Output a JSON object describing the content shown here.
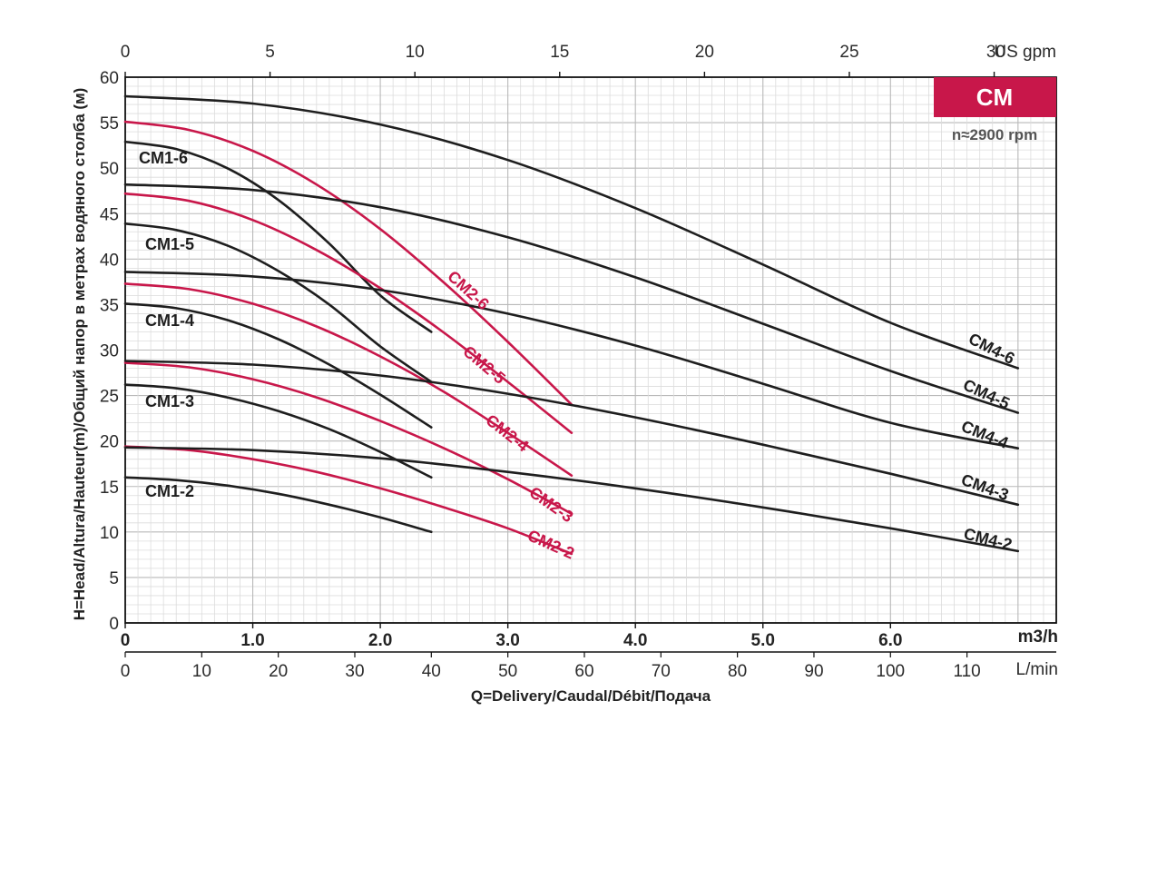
{
  "chart_data": {
    "type": "line",
    "badge": "CM",
    "speed_note": "n≈2900 rpm",
    "ylabel": "H=Head/Altura/Hauteur(m)/Общий напор в метрах водяного столба (м)",
    "xlabel": "Q=Delivery/Caudal/Débit/Подача",
    "ylim": [
      0,
      60
    ],
    "xlim_m3h": [
      0,
      7.3
    ],
    "y_ticks": [
      "0",
      "5",
      "10",
      "15",
      "20",
      "25",
      "30",
      "35",
      "40",
      "45",
      "50",
      "55",
      "60"
    ],
    "x_axes": {
      "m3h": {
        "unit": "m3/h",
        "ticks": [
          {
            "v": 0,
            "label": "0"
          },
          {
            "v": 1,
            "label": "1.0"
          },
          {
            "v": 2,
            "label": "2.0"
          },
          {
            "v": 3,
            "label": "3.0"
          },
          {
            "v": 4,
            "label": "4.0"
          },
          {
            "v": 5,
            "label": "5.0"
          },
          {
            "v": 6,
            "label": "6.0"
          }
        ]
      },
      "lmin": {
        "unit": "L/min",
        "ticks": [
          "0",
          "10",
          "20",
          "30",
          "40",
          "50",
          "60",
          "70",
          "80",
          "90",
          "100",
          "110"
        ]
      },
      "usgpm": {
        "unit": "US gpm",
        "ticks": [
          "0",
          "5",
          "10",
          "15",
          "20",
          "25",
          "30"
        ]
      }
    },
    "grid": true,
    "series": [
      {
        "name": "CM1-2",
        "family": "CM1",
        "color": "#1e1e1e",
        "x": [
          0,
          0.4,
          0.8,
          1.2,
          1.6,
          2.0,
          2.4
        ],
        "y": [
          16.0,
          15.7,
          15.1,
          14.2,
          13.0,
          11.6,
          10.0
        ]
      },
      {
        "name": "CM1-3",
        "family": "CM1",
        "color": "#1e1e1e",
        "x": [
          0,
          0.4,
          0.8,
          1.2,
          1.6,
          2.0,
          2.4
        ],
        "y": [
          26.2,
          25.8,
          24.8,
          23.3,
          21.3,
          18.8,
          16.0
        ]
      },
      {
        "name": "CM1-4",
        "family": "CM1",
        "color": "#1e1e1e",
        "x": [
          0,
          0.4,
          0.8,
          1.2,
          1.6,
          2.0,
          2.4
        ],
        "y": [
          35.1,
          34.6,
          33.3,
          31.2,
          28.4,
          25.1,
          21.5
        ]
      },
      {
        "name": "CM1-5",
        "family": "CM1",
        "color": "#1e1e1e",
        "x": [
          0,
          0.4,
          0.8,
          1.2,
          1.6,
          2.0,
          2.4
        ],
        "y": [
          43.9,
          43.2,
          41.5,
          38.7,
          35.0,
          30.4,
          26.5
        ]
      },
      {
        "name": "CM1-6",
        "family": "CM1",
        "color": "#1e1e1e",
        "x": [
          0,
          0.4,
          0.8,
          1.2,
          1.6,
          2.0,
          2.4
        ],
        "y": [
          52.9,
          52.1,
          50.0,
          46.5,
          41.7,
          36.0,
          32.0
        ]
      },
      {
        "name": "CM2-2",
        "family": "CM2",
        "color": "#c8174a",
        "x": [
          0,
          0.5,
          1.0,
          1.5,
          2.0,
          2.5,
          3.0,
          3.5
        ],
        "y": [
          19.4,
          19.0,
          18.0,
          16.6,
          14.8,
          12.7,
          10.4,
          7.6
        ]
      },
      {
        "name": "CM2-3",
        "family": "CM2",
        "color": "#c8174a",
        "x": [
          0,
          0.5,
          1.0,
          1.5,
          2.0,
          2.5,
          3.0,
          3.5
        ],
        "y": [
          28.6,
          28.1,
          26.8,
          24.8,
          22.2,
          19.2,
          15.8,
          12.0
        ]
      },
      {
        "name": "CM2-4",
        "family": "CM2",
        "color": "#c8174a",
        "x": [
          0,
          0.5,
          1.0,
          1.5,
          2.0,
          2.5,
          3.0,
          3.5
        ],
        "y": [
          37.3,
          36.7,
          35.1,
          32.6,
          29.3,
          25.4,
          20.9,
          16.2
        ]
      },
      {
        "name": "CM2-5",
        "family": "CM2",
        "color": "#c8174a",
        "x": [
          0,
          0.5,
          1.0,
          1.5,
          2.0,
          2.5,
          3.0,
          3.5
        ],
        "y": [
          47.2,
          46.4,
          44.3,
          41.0,
          36.8,
          31.9,
          26.5,
          20.9
        ]
      },
      {
        "name": "CM2-6",
        "family": "CM2",
        "color": "#c8174a",
        "x": [
          0,
          0.5,
          1.0,
          1.5,
          2.0,
          2.5,
          3.0,
          3.5
        ],
        "y": [
          55.1,
          54.2,
          51.9,
          48.2,
          43.3,
          37.4,
          30.9,
          24.0
        ]
      },
      {
        "name": "CM4-2",
        "family": "CM4",
        "color": "#1e1e1e",
        "x": [
          0,
          1,
          2,
          3,
          4,
          5,
          6,
          7
        ],
        "y": [
          19.3,
          19.0,
          18.1,
          16.6,
          14.8,
          12.7,
          10.4,
          7.9
        ]
      },
      {
        "name": "CM4-3",
        "family": "CM4",
        "color": "#1e1e1e",
        "x": [
          0,
          1,
          2,
          3,
          4,
          5,
          6,
          7
        ],
        "y": [
          28.8,
          28.4,
          27.2,
          25.2,
          22.6,
          19.6,
          16.4,
          13.0
        ]
      },
      {
        "name": "CM4-4",
        "family": "CM4",
        "color": "#1e1e1e",
        "x": [
          0,
          1,
          2,
          3,
          4,
          5,
          6,
          7
        ],
        "y": [
          38.6,
          38.1,
          36.6,
          34.0,
          30.5,
          26.3,
          22.0,
          19.2
        ]
      },
      {
        "name": "CM4-5",
        "family": "CM4",
        "color": "#1e1e1e",
        "x": [
          0,
          1,
          2,
          3,
          4,
          5,
          6,
          7
        ],
        "y": [
          48.2,
          47.6,
          45.7,
          42.4,
          38.0,
          32.9,
          27.7,
          23.1
        ]
      },
      {
        "name": "CM4-6",
        "family": "CM4",
        "color": "#1e1e1e",
        "x": [
          0,
          1,
          2,
          3,
          4,
          5,
          6,
          7
        ],
        "y": [
          57.9,
          57.1,
          54.8,
          50.9,
          45.6,
          39.4,
          33.0,
          28.0
        ]
      }
    ]
  }
}
